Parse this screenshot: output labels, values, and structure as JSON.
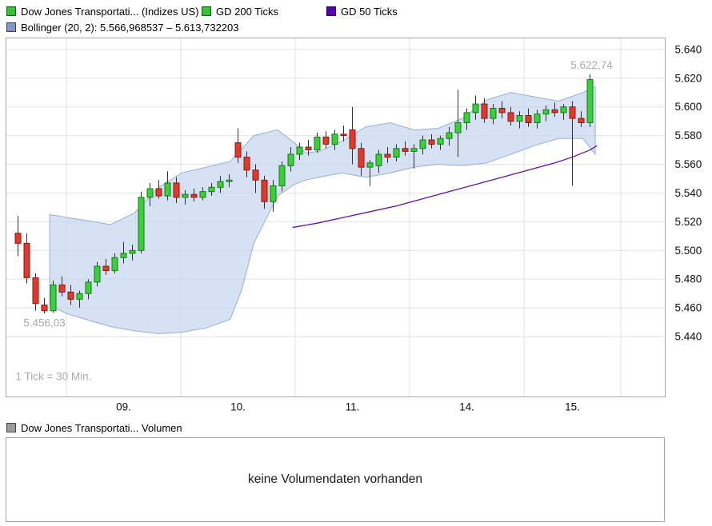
{
  "legend": {
    "items": [
      {
        "label": "Dow Jones Transportati... (Indizes US)",
        "color": "#33C433"
      },
      {
        "label": "GD 200 Ticks",
        "color": "#33C433"
      },
      {
        "label": "GD 50 Ticks",
        "color": "#5A00B4"
      }
    ],
    "bollinger": {
      "label": "Bollinger (20, 2): 5.566,968537 – 5.613,732203",
      "color": "#8296C8"
    },
    "volume": {
      "label": "Dow Jones Transportati... Volumen",
      "color": "#9A9A9A"
    }
  },
  "volume_panel": {
    "message": "keine Volumendaten vorhanden"
  },
  "chart_data": {
    "type": "candlestick",
    "title": "Dow Jones Transportation (Indizes US), 30-min candles with Bollinger(20,2) and GD 50 Ticks",
    "tick_interval": "1 Tick = 30 Min.",
    "ylim": [
      5398,
      5648
    ],
    "y_ticks": [
      {
        "value": 5640,
        "label": "5.640"
      },
      {
        "value": 5620,
        "label": "5.620"
      },
      {
        "value": 5600,
        "label": "5.600"
      },
      {
        "value": 5580,
        "label": "5.580"
      },
      {
        "value": 5560,
        "label": "5.560"
      },
      {
        "value": 5540,
        "label": "5.540"
      },
      {
        "value": 5520,
        "label": "5.520"
      },
      {
        "value": 5500,
        "label": "5.500"
      },
      {
        "value": 5480,
        "label": "5.480"
      },
      {
        "value": 5460,
        "label": "5.460"
      },
      {
        "value": 5440,
        "label": "5.440"
      }
    ],
    "x_ticks": [
      {
        "idx": 12,
        "label": "09."
      },
      {
        "idx": 25,
        "label": "10."
      },
      {
        "idx": 38,
        "label": "11."
      },
      {
        "idx": 51,
        "label": "14."
      },
      {
        "idx": 63,
        "label": "15."
      }
    ],
    "day_boundaries": [
      5.5,
      18.5,
      31.5,
      44.5,
      57.5,
      68.5
    ],
    "high_annotation": {
      "label": "5.622,74",
      "value": 5622.74
    },
    "low_annotation": {
      "label": "5.456,03",
      "value": 5456.03
    },
    "candles": [
      [
        5512,
        5524,
        5496,
        5505
      ],
      [
        5505,
        5512,
        5477,
        5481
      ],
      [
        5481,
        5484,
        5458,
        5463
      ],
      [
        5462,
        5467,
        5456.03,
        5458
      ],
      [
        5458,
        5479,
        5456.5,
        5476
      ],
      [
        5476,
        5482,
        5468,
        5471
      ],
      [
        5471,
        5476,
        5462,
        5466
      ],
      [
        5466,
        5472,
        5460,
        5470
      ],
      [
        5470,
        5480,
        5466,
        5478
      ],
      [
        5478,
        5492,
        5475,
        5489
      ],
      [
        5489,
        5494,
        5483,
        5486
      ],
      [
        5486,
        5498,
        5484,
        5495
      ],
      [
        5495,
        5506,
        5491,
        5498
      ],
      [
        5498,
        5504,
        5493,
        5500
      ],
      [
        5500,
        5541,
        5498,
        5537
      ],
      [
        5537,
        5547,
        5531,
        5543
      ],
      [
        5543,
        5549,
        5536,
        5538
      ],
      [
        5538,
        5555,
        5535,
        5547
      ],
      [
        5547,
        5551,
        5533,
        5537
      ],
      [
        5537,
        5542,
        5532,
        5539
      ],
      [
        5539,
        5543,
        5534,
        5537
      ],
      [
        5537,
        5544,
        5535,
        5541
      ],
      [
        5541,
        5547,
        5538,
        5544
      ],
      [
        5544,
        5552,
        5540,
        5548
      ],
      [
        5548,
        5553,
        5544,
        5549
      ],
      [
        5575,
        5585,
        5561,
        5565
      ],
      [
        5565,
        5569,
        5551,
        5556
      ],
      [
        5556,
        5560,
        5540,
        5549
      ],
      [
        5549,
        5552,
        5529,
        5534
      ],
      [
        5534,
        5549,
        5527,
        5545
      ],
      [
        5545,
        5562,
        5541,
        5559
      ],
      [
        5559,
        5572,
        5555,
        5567
      ],
      [
        5567,
        5575,
        5563,
        5572
      ],
      [
        5572,
        5577,
        5566,
        5570
      ],
      [
        5570,
        5582,
        5568,
        5579
      ],
      [
        5579,
        5583,
        5571,
        5574
      ],
      [
        5574,
        5584,
        5570,
        5581
      ],
      [
        5581,
        5587,
        5576,
        5580
      ],
      [
        5584,
        5600,
        5560,
        5571
      ],
      [
        5571,
        5575,
        5552,
        5558
      ],
      [
        5558,
        5563,
        5545,
        5561
      ],
      [
        5559,
        5570,
        5554,
        5567
      ],
      [
        5567,
        5572,
        5561,
        5565
      ],
      [
        5565,
        5574,
        5562,
        5571
      ],
      [
        5571,
        5576,
        5566,
        5569
      ],
      [
        5569,
        5574,
        5557,
        5571
      ],
      [
        5571,
        5580,
        5567,
        5577
      ],
      [
        5577,
        5581,
        5571,
        5574
      ],
      [
        5574,
        5580,
        5570,
        5578
      ],
      [
        5578,
        5586,
        5573,
        5582
      ],
      [
        5582,
        5612,
        5565,
        5589
      ],
      [
        5589,
        5599,
        5584,
        5596
      ],
      [
        5596,
        5608,
        5591,
        5602
      ],
      [
        5602,
        5606,
        5589,
        5592
      ],
      [
        5592,
        5602,
        5588,
        5599
      ],
      [
        5599,
        5604,
        5592,
        5596
      ],
      [
        5596,
        5600,
        5587,
        5590
      ],
      [
        5590,
        5597,
        5585,
        5594
      ],
      [
        5594,
        5599,
        5586,
        5589
      ],
      [
        5589,
        5598,
        5585,
        5595
      ],
      [
        5595,
        5601,
        5590,
        5598
      ],
      [
        5598,
        5603,
        5593,
        5596
      ],
      [
        5596,
        5602,
        5591,
        5600
      ],
      [
        5600,
        5604,
        5545,
        5592
      ],
      [
        5592,
        5597,
        5586,
        5589
      ],
      [
        5589,
        5622.74,
        5586,
        5619
      ]
    ],
    "bollinger": {
      "upper": [
        [
          3.6,
          5525
        ],
        [
          5.5,
          5523
        ],
        [
          7.7,
          5521
        ],
        [
          10.5,
          5518
        ],
        [
          13.2,
          5526
        ],
        [
          16,
          5544
        ],
        [
          18.6,
          5554
        ],
        [
          21.4,
          5558
        ],
        [
          24.1,
          5562
        ],
        [
          26.8,
          5580
        ],
        [
          29.5,
          5584
        ],
        [
          31.4,
          5575
        ],
        [
          32.7,
          5568
        ],
        [
          34.2,
          5569
        ],
        [
          36.8,
          5576
        ],
        [
          39.5,
          5586
        ],
        [
          42.3,
          5589
        ],
        [
          45,
          5584
        ],
        [
          47.7,
          5585
        ],
        [
          50.5,
          5592
        ],
        [
          53.3,
          5605
        ],
        [
          56,
          5610
        ],
        [
          58.7,
          5607
        ],
        [
          61.4,
          5604
        ],
        [
          64.2,
          5610
        ],
        [
          65.6,
          5614
        ]
      ],
      "lower": [
        [
          3.6,
          5462
        ],
        [
          5.5,
          5456
        ],
        [
          7.7,
          5452
        ],
        [
          10.5,
          5447
        ],
        [
          13.2,
          5444
        ],
        [
          16,
          5442
        ],
        [
          18.6,
          5443
        ],
        [
          21.4,
          5446
        ],
        [
          24.1,
          5452
        ],
        [
          25.4,
          5472
        ],
        [
          26.8,
          5505
        ],
        [
          29.5,
          5538
        ],
        [
          31.4,
          5546
        ],
        [
          32.7,
          5549
        ],
        [
          34.2,
          5551
        ],
        [
          36.8,
          5554
        ],
        [
          39.5,
          5551
        ],
        [
          42.3,
          5554
        ],
        [
          45,
          5558
        ],
        [
          47.7,
          5560
        ],
        [
          50.5,
          5559
        ],
        [
          53.3,
          5561
        ],
        [
          56,
          5567
        ],
        [
          58.7,
          5573
        ],
        [
          61.4,
          5578
        ],
        [
          64.2,
          5578
        ],
        [
          65.6,
          5567
        ]
      ]
    },
    "gd50": [
      [
        31.2,
        5516
      ],
      [
        34,
        5519
      ],
      [
        37,
        5523
      ],
      [
        40,
        5527
      ],
      [
        43,
        5531
      ],
      [
        46,
        5536
      ],
      [
        49,
        5541
      ],
      [
        52,
        5546
      ],
      [
        55,
        5551
      ],
      [
        58,
        5556
      ],
      [
        61,
        5561
      ],
      [
        63,
        5565
      ],
      [
        65,
        5570
      ],
      [
        65.8,
        5573
      ]
    ],
    "colors": {
      "up": "#3CCE3C",
      "up_border": "#0F7D0F",
      "down": "#DE3A2E",
      "down_border": "#8F170E",
      "bollinger_fill": "#C4D5EE",
      "bollinger_line": "#8FA8D4",
      "gd50": "#6A0DAD",
      "grid": "#E2E2E2",
      "annotation": "#ABABAB"
    }
  }
}
